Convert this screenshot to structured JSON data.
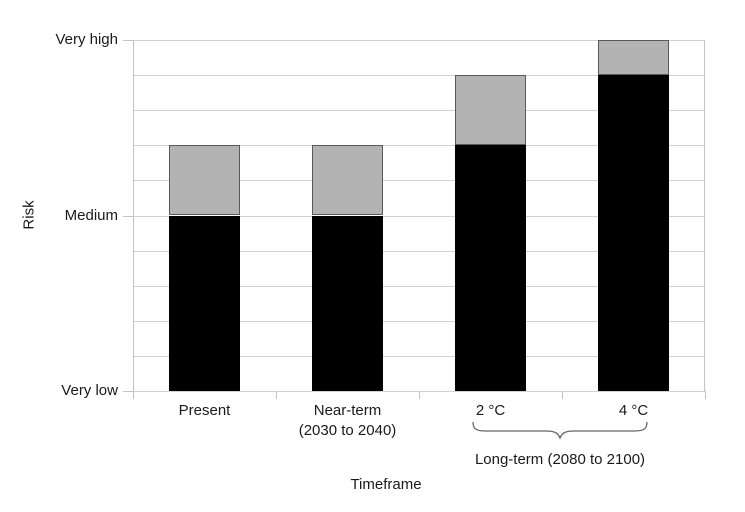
{
  "chart_data": {
    "type": "bar",
    "stacked": true,
    "title": "",
    "xlabel": "Timeframe",
    "ylabel": "Risk",
    "ylim": [
      0,
      10
    ],
    "grid_step": 1,
    "grid": true,
    "legend": "none",
    "categories": [
      {
        "line1": "Present",
        "line2": ""
      },
      {
        "line1": "Near-term",
        "line2": "(2030 to 2040)"
      },
      {
        "line1": "2 °C",
        "line2": ""
      },
      {
        "line1": "4 °C",
        "line2": ""
      }
    ],
    "y_ticks": [
      {
        "label": "Very low",
        "value": 0
      },
      {
        "label": "Medium",
        "value": 5
      },
      {
        "label": "Very high",
        "value": 10
      }
    ],
    "series": [
      {
        "name": "black-segment",
        "color": "#000000",
        "border_color": "#000000",
        "values": [
          5,
          5,
          7,
          9
        ]
      },
      {
        "name": "gray-segment",
        "color": "#b3b3b3",
        "border_color": "#595959",
        "values": [
          2,
          2,
          2,
          1
        ]
      }
    ],
    "annotation": {
      "label": "Long-term (2080 to 2100)",
      "span_categories": [
        "2 °C",
        "4 °C"
      ]
    }
  },
  "colors": {
    "background": "#ffffff",
    "gridline": "#d2d2d2",
    "axis": "#c3c3c3",
    "text": "#1a1a1a",
    "bar_black": "#000000",
    "bar_gray": "#b3b3b3",
    "bar_gray_border": "#595959",
    "brace": "#666666"
  }
}
